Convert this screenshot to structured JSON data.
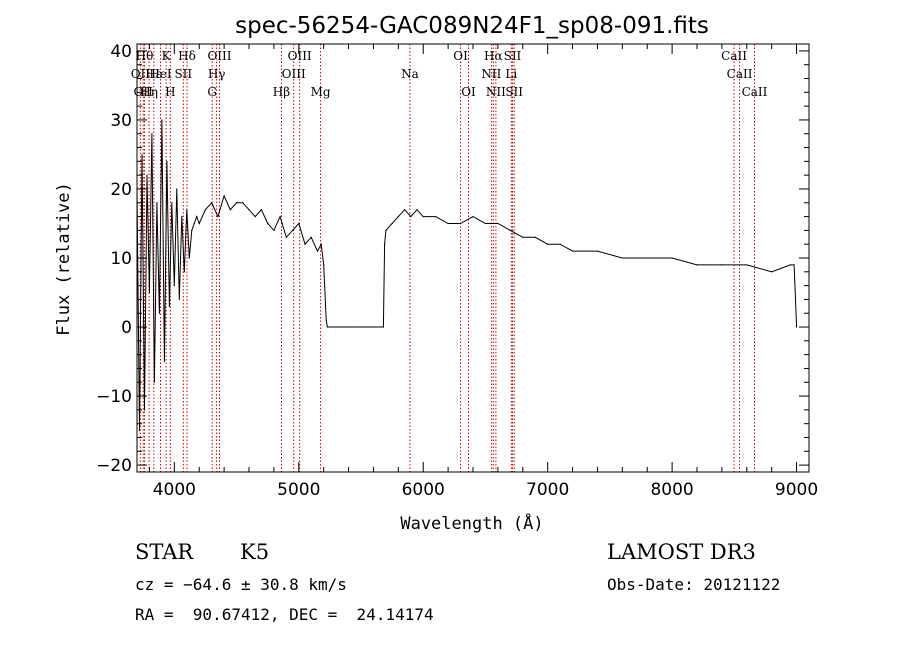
{
  "chart_data": {
    "type": "line",
    "title": "spec-56254-GAC089N24F1_sp08-091.fits",
    "xlabel": "Wavelength (Å)",
    "ylabel": "Flux (relative)",
    "xlim": [
      3700,
      9100
    ],
    "ylim": [
      -21,
      41
    ],
    "xticks": [
      4000,
      5000,
      6000,
      7000,
      8000,
      9000
    ],
    "xtick_labels": [
      "4000",
      "5000",
      "6000",
      "7000",
      "8000",
      "9000"
    ],
    "yticks": [
      -20,
      -10,
      0,
      10,
      20,
      30,
      40
    ],
    "ytick_labels": [
      "−20",
      "−10",
      "0",
      "10",
      "20",
      "30",
      "40"
    ],
    "grid": false,
    "series": [
      {
        "name": "spectrum",
        "x": [
          3700,
          3720,
          3740,
          3760,
          3780,
          3800,
          3820,
          3840,
          3860,
          3880,
          3900,
          3920,
          3940,
          3960,
          3980,
          4000,
          4020,
          4040,
          4060,
          4080,
          4100,
          4120,
          4140,
          4160,
          4180,
          4200,
          4250,
          4300,
          4350,
          4400,
          4450,
          4500,
          4550,
          4600,
          4650,
          4700,
          4750,
          4800,
          4850,
          4900,
          4950,
          5000,
          5050,
          5100,
          5150,
          5180,
          5200,
          5220,
          5230,
          5300,
          5400,
          5500,
          5600,
          5680,
          5690,
          5700,
          5750,
          5800,
          5850,
          5900,
          5950,
          6000,
          6100,
          6200,
          6300,
          6400,
          6500,
          6600,
          6700,
          6800,
          6900,
          7000,
          7100,
          7200,
          7400,
          7600,
          7800,
          8000,
          8200,
          8400,
          8600,
          8800,
          8950,
          8980,
          9000
        ],
        "y": [
          20,
          -15,
          25,
          -12,
          22,
          5,
          28,
          -8,
          18,
          2,
          30,
          -5,
          24,
          3,
          18,
          6,
          20,
          4,
          16,
          8,
          17,
          10,
          14,
          15,
          16,
          15,
          17,
          18,
          16,
          19,
          17,
          18,
          18,
          17,
          16,
          17,
          15,
          14,
          16,
          13,
          14,
          15,
          12,
          13,
          11,
          12,
          9,
          1,
          0,
          0,
          0,
          0,
          0,
          0,
          12,
          14,
          15,
          16,
          17,
          16,
          17,
          16,
          16,
          15,
          15,
          16,
          15,
          15,
          14,
          13,
          13,
          12,
          12,
          11,
          11,
          10,
          10,
          10,
          9,
          9,
          9,
          8,
          9,
          9,
          0
        ]
      }
    ],
    "lines": [
      {
        "wave": 3727,
        "label": "OII",
        "row": 1
      },
      {
        "wave": 3750,
        "label": "OII",
        "row": 2
      },
      {
        "wave": 3760,
        "label": "Hθ",
        "row": 0
      },
      {
        "wave": 3797,
        "label": "Hη",
        "row": 2
      },
      {
        "wave": 3835,
        "label": "Hε",
        "row": 1
      },
      {
        "wave": 3889,
        "label": "HeI",
        "row": 1
      },
      {
        "wave": 3934,
        "label": "K",
        "row": 0
      },
      {
        "wave": 3968,
        "label": "H",
        "row": 2
      },
      {
        "wave": 4072,
        "label": "SII",
        "row": 1
      },
      {
        "wave": 4102,
        "label": "Hδ",
        "row": 0
      },
      {
        "wave": 4304,
        "label": "G",
        "row": 2
      },
      {
        "wave": 4340,
        "label": "Hγ",
        "row": 1
      },
      {
        "wave": 4363,
        "label": "OIII",
        "row": 0
      },
      {
        "wave": 4861,
        "label": "Hβ",
        "row": 2
      },
      {
        "wave": 4959,
        "label": "OIII",
        "row": 1
      },
      {
        "wave": 5007,
        "label": "OIII",
        "row": 0
      },
      {
        "wave": 5175,
        "label": "Mg",
        "row": 2
      },
      {
        "wave": 5893,
        "label": "Na",
        "row": 1
      },
      {
        "wave": 6300,
        "label": "OI",
        "row": 0
      },
      {
        "wave": 6364,
        "label": "OI",
        "row": 2
      },
      {
        "wave": 6548,
        "label": "NII",
        "row": 1
      },
      {
        "wave": 6563,
        "label": "Hα",
        "row": 0
      },
      {
        "wave": 6584,
        "label": "NII",
        "row": 2
      },
      {
        "wave": 6708,
        "label": "Li",
        "row": 1
      },
      {
        "wave": 6717,
        "label": "SII",
        "row": 0
      },
      {
        "wave": 6731,
        "label": "SII",
        "row": 2
      },
      {
        "wave": 8498,
        "label": "CaII",
        "row": 0
      },
      {
        "wave": 8542,
        "label": "CaII",
        "row": 1
      },
      {
        "wave": 8662,
        "label": "CaII",
        "row": 2
      }
    ],
    "line_color": "#cc0000"
  },
  "info": {
    "class_label": "STAR",
    "subclass": "K5",
    "survey": "LAMOST DR3",
    "cz": "cz = −64.6 ± 30.8 km/s",
    "obs_date": "Obs-Date: 20121122",
    "coords": "RA =  90.67412, DEC =  24.14174"
  }
}
